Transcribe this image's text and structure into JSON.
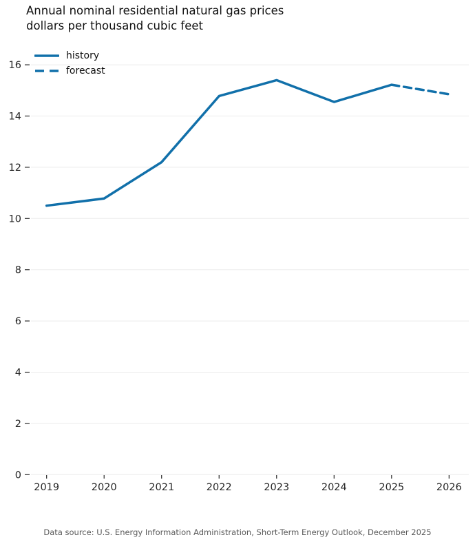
{
  "title": {
    "line1": "Annual nominal residential natural gas prices",
    "line2": "dollars per thousand cubic feet"
  },
  "legend": [
    {
      "label": "history",
      "style": "solid"
    },
    {
      "label": "forecast",
      "style": "dashed"
    }
  ],
  "footer": "Data source: U.S. Energy Information Administration, Short-Term Energy Outlook, December 2025",
  "colors": {
    "line": "#1170aa",
    "grid": "#ebebeb",
    "tick": "#262626"
  },
  "chart_data": {
    "type": "line",
    "title": "Annual nominal residential natural gas prices",
    "subtitle": "dollars per thousand cubic feet",
    "xlabel": "",
    "ylabel": "dollars per thousand cubic feet",
    "x": [
      2019,
      2020,
      2021,
      2022,
      2023,
      2024,
      2025,
      2026
    ],
    "series": [
      {
        "name": "history",
        "style": "solid",
        "x": [
          2019,
          2020,
          2021,
          2022,
          2023,
          2024,
          2025
        ],
        "values": [
          10.5,
          10.78,
          12.2,
          14.78,
          15.4,
          14.55,
          15.22
        ]
      },
      {
        "name": "forecast",
        "style": "dashed",
        "x": [
          2025,
          2026
        ],
        "values": [
          15.22,
          14.85
        ]
      }
    ],
    "ylim": [
      0,
      16
    ],
    "yticks": [
      0,
      2,
      4,
      6,
      8,
      10,
      12,
      14,
      16
    ],
    "grid": true,
    "legend_position": "top-left"
  }
}
